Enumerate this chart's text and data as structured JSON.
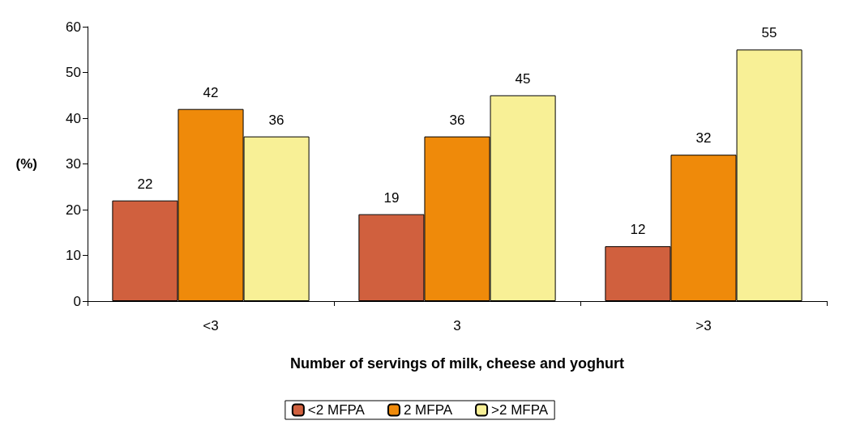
{
  "chart_data": {
    "type": "bar",
    "xlabel": "Number of servings of milk, cheese and yoghurt",
    "ylabel": "(%)",
    "categories": [
      "<3",
      "3",
      ">3"
    ],
    "series": [
      {
        "name": "<2 MFPA",
        "color": "#d0603e",
        "values": [
          22,
          19,
          12
        ]
      },
      {
        "name": "2 MFPA",
        "color": "#ef8a0a",
        "values": [
          42,
          36,
          32
        ]
      },
      {
        "name": ">2 MFPA",
        "color": "#f8f096",
        "values": [
          36,
          45,
          55
        ]
      }
    ],
    "ylim": [
      0,
      60
    ],
    "yticks": [
      0,
      10,
      20,
      30,
      40,
      50,
      60
    ],
    "grid": false,
    "legend": "bottom",
    "data_labels": true
  }
}
